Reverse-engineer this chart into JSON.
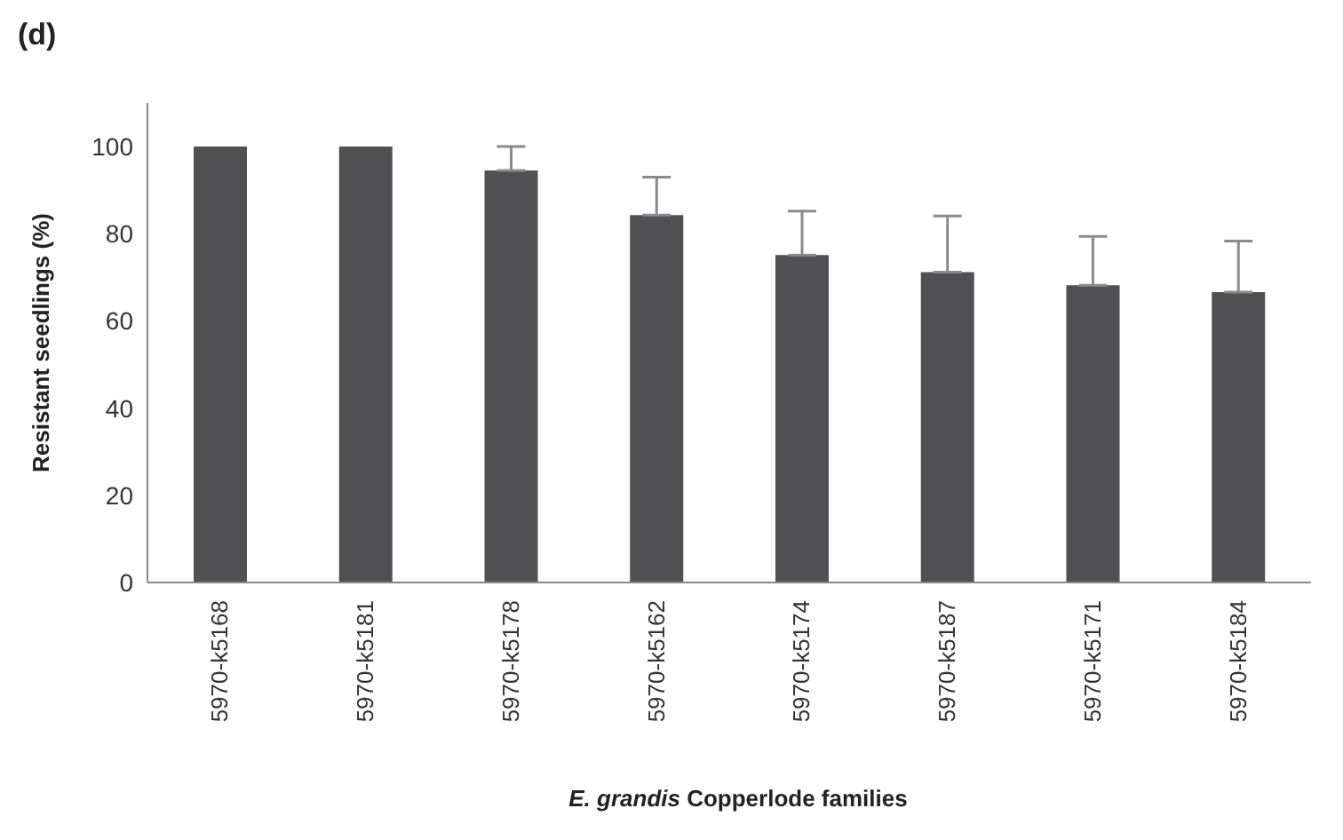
{
  "chart_data": {
    "type": "bar",
    "title": "(d)",
    "xlabel": "E. grandis Copperlode families",
    "ylabel": "Resistant seedlings (%)",
    "categories": [
      "5970-k5168",
      "5970-k5181",
      "5970-k5178",
      "5970-k5162",
      "5970-k5174",
      "5970-k5187",
      "5970-k5171",
      "5970-k5184"
    ],
    "values": [
      100,
      100,
      94.5,
      84.3,
      75.1,
      71.2,
      68.2,
      66.6
    ],
    "errors": [
      null,
      null,
      [
        94.5,
        100
      ],
      [
        84.3,
        93
      ],
      [
        75.1,
        85.2
      ],
      [
        71.2,
        84.1
      ],
      [
        68.2,
        79.4
      ],
      [
        66.6,
        78.3
      ]
    ],
    "color": "#505052",
    "ylim": [
      0,
      110
    ],
    "yticks": [
      0,
      20,
      40,
      60,
      80,
      100
    ],
    "grid": false,
    "legend": false
  }
}
